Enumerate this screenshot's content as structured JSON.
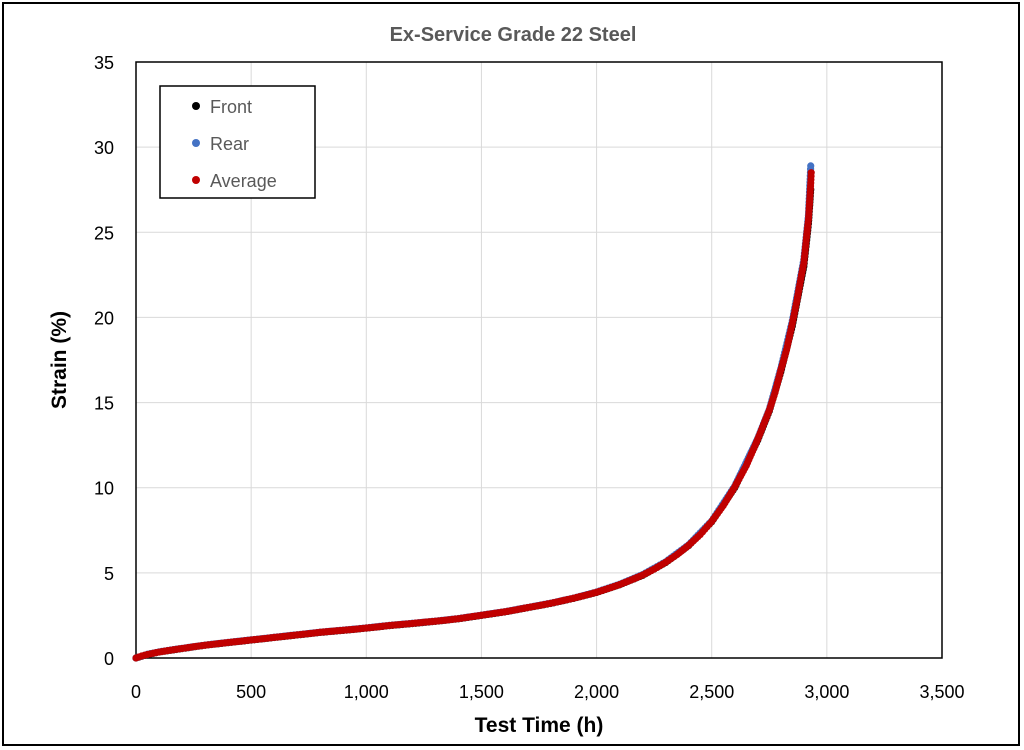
{
  "chart_data": {
    "type": "scatter",
    "title": "Ex-Service Grade 22 Steel",
    "xlabel": "Test Time (h)",
    "ylabel": "Strain (%)",
    "xlim": [
      0,
      3500
    ],
    "ylim": [
      0,
      35
    ],
    "x_ticks": [
      "0",
      "500",
      "1,000",
      "1,500",
      "2,000",
      "2,500",
      "3,000",
      "3,500"
    ],
    "y_ticks": [
      "0",
      "5",
      "10",
      "15",
      "20",
      "25",
      "30",
      "35"
    ],
    "grid": true,
    "legend_position": "top-left",
    "series": [
      {
        "name": "Front",
        "color": "#000000",
        "points": [
          [
            0,
            0.0
          ],
          [
            50,
            0.2
          ],
          [
            100,
            0.35
          ],
          [
            150,
            0.45
          ],
          [
            200,
            0.55
          ],
          [
            300,
            0.75
          ],
          [
            400,
            0.9
          ],
          [
            500,
            1.05
          ],
          [
            600,
            1.2
          ],
          [
            700,
            1.35
          ],
          [
            800,
            1.5
          ],
          [
            900,
            1.62
          ],
          [
            1000,
            1.75
          ],
          [
            1100,
            1.9
          ],
          [
            1200,
            2.02
          ],
          [
            1300,
            2.15
          ],
          [
            1400,
            2.3
          ],
          [
            1500,
            2.5
          ],
          [
            1600,
            2.7
          ],
          [
            1700,
            2.95
          ],
          [
            1800,
            3.2
          ],
          [
            1900,
            3.5
          ],
          [
            2000,
            3.85
          ],
          [
            2100,
            4.3
          ],
          [
            2200,
            4.85
          ],
          [
            2300,
            5.6
          ],
          [
            2400,
            6.6
          ],
          [
            2500,
            8.0
          ],
          [
            2600,
            10.0
          ],
          [
            2700,
            12.8
          ],
          [
            2750,
            14.5
          ],
          [
            2800,
            16.8
          ],
          [
            2850,
            19.5
          ],
          [
            2900,
            23.0
          ],
          [
            2920,
            25.5
          ],
          [
            2930,
            27.5
          ]
        ]
      },
      {
        "name": "Rear",
        "color": "#4472c4",
        "points": [
          [
            0,
            0.0
          ],
          [
            50,
            0.22
          ],
          [
            100,
            0.36
          ],
          [
            150,
            0.47
          ],
          [
            200,
            0.57
          ],
          [
            300,
            0.76
          ],
          [
            400,
            0.92
          ],
          [
            500,
            1.07
          ],
          [
            600,
            1.22
          ],
          [
            700,
            1.37
          ],
          [
            800,
            1.52
          ],
          [
            900,
            1.64
          ],
          [
            1000,
            1.77
          ],
          [
            1100,
            1.92
          ],
          [
            1200,
            2.04
          ],
          [
            1300,
            2.17
          ],
          [
            1400,
            2.32
          ],
          [
            1500,
            2.52
          ],
          [
            1600,
            2.72
          ],
          [
            1700,
            2.97
          ],
          [
            1800,
            3.22
          ],
          [
            1900,
            3.52
          ],
          [
            2000,
            3.88
          ],
          [
            2100,
            4.33
          ],
          [
            2200,
            4.9
          ],
          [
            2300,
            5.65
          ],
          [
            2400,
            6.65
          ],
          [
            2500,
            8.05
          ],
          [
            2600,
            10.1
          ],
          [
            2700,
            12.9
          ],
          [
            2750,
            14.6
          ],
          [
            2800,
            17.0
          ],
          [
            2850,
            19.8
          ],
          [
            2900,
            23.4
          ],
          [
            2920,
            26.0
          ],
          [
            2930,
            28.9
          ]
        ]
      },
      {
        "name": "Average",
        "color": "#c00000",
        "points": [
          [
            0,
            0.0
          ],
          [
            25,
            0.12
          ],
          [
            50,
            0.21
          ],
          [
            75,
            0.28
          ],
          [
            100,
            0.35
          ],
          [
            150,
            0.46
          ],
          [
            200,
            0.56
          ],
          [
            250,
            0.66
          ],
          [
            300,
            0.75
          ],
          [
            350,
            0.83
          ],
          [
            400,
            0.91
          ],
          [
            450,
            0.98
          ],
          [
            500,
            1.06
          ],
          [
            550,
            1.13
          ],
          [
            600,
            1.21
          ],
          [
            650,
            1.28
          ],
          [
            700,
            1.36
          ],
          [
            750,
            1.43
          ],
          [
            800,
            1.51
          ],
          [
            850,
            1.57
          ],
          [
            900,
            1.63
          ],
          [
            950,
            1.69
          ],
          [
            1000,
            1.76
          ],
          [
            1050,
            1.83
          ],
          [
            1100,
            1.91
          ],
          [
            1150,
            1.97
          ],
          [
            1200,
            2.03
          ],
          [
            1250,
            2.1
          ],
          [
            1300,
            2.16
          ],
          [
            1350,
            2.23
          ],
          [
            1400,
            2.31
          ],
          [
            1450,
            2.41
          ],
          [
            1500,
            2.51
          ],
          [
            1550,
            2.61
          ],
          [
            1600,
            2.71
          ],
          [
            1650,
            2.83
          ],
          [
            1700,
            2.96
          ],
          [
            1750,
            3.08
          ],
          [
            1800,
            3.21
          ],
          [
            1850,
            3.36
          ],
          [
            1900,
            3.51
          ],
          [
            1950,
            3.68
          ],
          [
            2000,
            3.86
          ],
          [
            2050,
            4.08
          ],
          [
            2100,
            4.31
          ],
          [
            2150,
            4.58
          ],
          [
            2200,
            4.87
          ],
          [
            2250,
            5.22
          ],
          [
            2300,
            5.62
          ],
          [
            2350,
            6.08
          ],
          [
            2400,
            6.62
          ],
          [
            2450,
            7.25
          ],
          [
            2500,
            8.02
          ],
          [
            2550,
            8.95
          ],
          [
            2600,
            10.05
          ],
          [
            2650,
            11.3
          ],
          [
            2700,
            12.85
          ],
          [
            2725,
            13.7
          ],
          [
            2750,
            14.55
          ],
          [
            2775,
            15.6
          ],
          [
            2800,
            16.9
          ],
          [
            2825,
            18.1
          ],
          [
            2850,
            19.65
          ],
          [
            2870,
            21.0
          ],
          [
            2890,
            22.5
          ],
          [
            2900,
            23.2
          ],
          [
            2910,
            24.5
          ],
          [
            2920,
            25.75
          ],
          [
            2925,
            26.8
          ],
          [
            2930,
            27.9
          ],
          [
            2932,
            28.5
          ]
        ]
      }
    ]
  }
}
